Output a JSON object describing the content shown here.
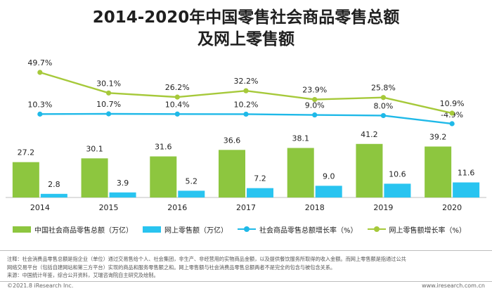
{
  "title_line1": "2014-2020年中国零售社会商品零售总额",
  "title_line2": "及网上零售额",
  "chart_data": {
    "type": "bar",
    "categories": [
      "2014",
      "2015",
      "2016",
      "2017",
      "2018",
      "2019",
      "2020"
    ],
    "series": [
      {
        "name": "中国社会商品零售总额（万亿）",
        "kind": "bar",
        "color": "#8dc63f",
        "values": [
          27.2,
          30.1,
          31.6,
          36.6,
          38.1,
          41.2,
          39.2
        ],
        "labels": [
          "27.2",
          "30.1",
          "31.6",
          "36.6",
          "38.1",
          "41.2",
          "39.2"
        ]
      },
      {
        "name": "网上零售额（万亿）",
        "kind": "bar",
        "color": "#29c4f0",
        "values": [
          2.8,
          3.9,
          5.2,
          7.2,
          9.0,
          10.6,
          11.6
        ],
        "labels": [
          "2.8",
          "3.9",
          "5.2",
          "7.2",
          "9.0",
          "10.6",
          "11.6"
        ]
      },
      {
        "name": "社会商品零售总额增长率（%）",
        "kind": "line",
        "color": "#1fb9e8",
        "values": [
          10.3,
          10.7,
          10.4,
          10.2,
          9.0,
          8.0,
          -4.9
        ],
        "labels": [
          "10.3%",
          "10.7%",
          "10.4%",
          "10.2%",
          "9.0%",
          "8.0%",
          "-4.9%"
        ]
      },
      {
        "name": "网上零售额增长率（%）",
        "kind": "line",
        "color": "#a6c93a",
        "values": [
          49.7,
          30.1,
          26.2,
          32.2,
          23.9,
          25.8,
          10.9
        ],
        "labels": [
          "49.7%",
          "30.1%",
          "26.2%",
          "32.2%",
          "23.9%",
          "25.8%",
          "10.9%"
        ]
      }
    ],
    "legend_position": "bottom",
    "grid": false
  },
  "notes": {
    "line1": "注释：社会消费品零售总额是指企业（单位）通过交易售给个人、社会集团，非生产、非经营用的实物商品金额，以及提供餐饮服务所取得的收入金额。而网上零售额是指通过公共",
    "line2": "网络交易平台（包括自建网站和第三方平台）实现的商品和服务零售额之和。网上零售额与社会消费品零售总额两者不是完全的包含与被包含关系。",
    "line3": "来源：中国统计年鉴，综合公开资料，艾瑞咨询院自主研究及绘制。"
  },
  "footer": {
    "copyright": "©2021.8 iResearch Inc.",
    "website": "www.iresearch.com.cn"
  }
}
